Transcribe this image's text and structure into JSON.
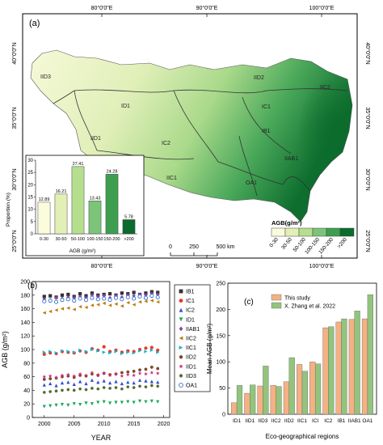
{
  "panel_a": {
    "label": "(a)",
    "top_ticks": [
      "80°0'0\"E",
      "90°0'0\"E",
      "100°0'0\"E"
    ],
    "bottom_ticks": [
      "80°0'0\"E",
      "90°0'0\"E",
      "100°0'0\"E"
    ],
    "left_ticks": [
      "40°0'0\"N",
      "35°0'0\"N",
      "30°0'0\"N",
      "25°0'0\"N"
    ],
    "right_ticks": [
      "40°0'0\"N",
      "35°0'0\"N",
      "30°0'0\"N",
      "25°0'0\"N"
    ],
    "regions": [
      "IID3",
      "IID2",
      "IIC2",
      "ID1",
      "IC1",
      "IID1",
      "IC2",
      "IB1",
      "IIAB1",
      "IIC1",
      "OA1"
    ],
    "scale_bar": {
      "labels": [
        "0",
        "250",
        "500 km"
      ]
    },
    "legend": {
      "title": "AGB(g/m²)",
      "classes": [
        "0-30",
        "30-50",
        "50-100",
        "100-150",
        "150-200",
        ">200"
      ],
      "colors": [
        "#fbfcdc",
        "#e2f0b6",
        "#b5df8f",
        "#7cc47a",
        "#3e9e4f",
        "#0b6b2c"
      ]
    }
  },
  "chart_data": [
    {
      "type": "bar",
      "panel": "inset",
      "categories": [
        "0-30",
        "30-50",
        "50-100",
        "100-150",
        "150-200",
        ">200"
      ],
      "values": [
        12.89,
        16.21,
        27.41,
        13.43,
        24.28,
        5.78
      ],
      "value_labels": [
        "12.89",
        "16.21",
        "27.41",
        "13.43",
        "24.28",
        "5.78"
      ],
      "ylabel": "Proportion (%)",
      "xlabel": "AGB (g/m²)",
      "ylim": [
        0,
        30
      ],
      "yticks": [
        "0",
        "5",
        "10",
        "15",
        "20",
        "25",
        "30"
      ],
      "colors": [
        "#fbfcdc",
        "#e2f0b6",
        "#b5df8f",
        "#7cc47a",
        "#3e9e4f",
        "#0b6b2c"
      ]
    },
    {
      "type": "scatter",
      "panel": "b",
      "label": "(b)",
      "xlabel": "YEAR",
      "ylabel": "AGB (g/m²)",
      "xlim": [
        1998,
        2021
      ],
      "ylim": [
        0,
        200
      ],
      "xticks": [
        "2000",
        "2005",
        "2010",
        "2015",
        "2020"
      ],
      "yticks": [
        "0",
        "20",
        "40",
        "60",
        "80",
        "100",
        "120",
        "140",
        "160",
        "180",
        "200"
      ],
      "x": [
        2000,
        2001,
        2002,
        2003,
        2004,
        2005,
        2006,
        2007,
        2008,
        2009,
        2010,
        2011,
        2012,
        2013,
        2014,
        2015,
        2016,
        2017,
        2018,
        2019
      ],
      "series": [
        {
          "name": "IB1",
          "color": "#333333",
          "marker": "square",
          "values": [
            178,
            179,
            177,
            180,
            181,
            178,
            182,
            179,
            183,
            180,
            181,
            182,
            180,
            183,
            182,
            184,
            181,
            183,
            185,
            184
          ]
        },
        {
          "name": "IC1",
          "color": "#e8392a",
          "marker": "circle",
          "values": [
            93,
            95,
            94,
            97,
            96,
            95,
            98,
            96,
            101,
            99,
            104,
            97,
            99,
            96,
            98,
            97,
            100,
            102,
            103,
            99
          ]
        },
        {
          "name": "IC2",
          "color": "#2c4bd6",
          "marker": "triangle-up",
          "values": [
            48,
            50,
            47,
            51,
            52,
            49,
            53,
            50,
            55,
            52,
            54,
            51,
            53,
            50,
            52,
            51,
            55,
            54,
            53,
            52
          ]
        },
        {
          "name": "ID1",
          "color": "#1aa85a",
          "marker": "triangle-down",
          "values": [
            16,
            17,
            18,
            19,
            18,
            20,
            19,
            21,
            20,
            22,
            23,
            21,
            22,
            22,
            23,
            22,
            24,
            23,
            24,
            23
          ]
        },
        {
          "name": "IIAB1",
          "color": "#8e44ad",
          "marker": "diamond",
          "values": [
            174,
            173,
            176,
            175,
            177,
            176,
            178,
            176,
            180,
            178,
            179,
            176,
            179,
            177,
            180,
            179,
            181,
            180,
            182,
            181
          ]
        },
        {
          "name": "IIC2",
          "color": "#c07a0a",
          "marker": "triangle-left",
          "values": [
            154,
            156,
            158,
            160,
            161,
            159,
            163,
            162,
            165,
            166,
            168,
            165,
            167,
            164,
            169,
            166,
            170,
            171,
            172,
            170
          ]
        },
        {
          "name": "IIC1",
          "color": "#1ab0c8",
          "marker": "triangle-right",
          "values": [
            96,
            97,
            95,
            98,
            97,
            96,
            99,
            97,
            100,
            98,
            96,
            95,
            97,
            94,
            96,
            95,
            98,
            97,
            99,
            96
          ]
        },
        {
          "name": "IID2",
          "color": "#7a4a2a",
          "marker": "hexagon",
          "values": [
            56,
            57,
            58,
            60,
            61,
            59,
            62,
            61,
            64,
            62,
            65,
            63,
            64,
            66,
            67,
            68,
            70,
            71,
            74,
            72
          ]
        },
        {
          "name": "IID1",
          "color": "#d12a7a",
          "marker": "star",
          "values": [
            60,
            61,
            59,
            62,
            63,
            61,
            64,
            62,
            66,
            63,
            65,
            62,
            64,
            61,
            63,
            62,
            65,
            64,
            66,
            65
          ]
        },
        {
          "name": "IID3",
          "color": "#556b2f",
          "marker": "pentagon",
          "values": [
            37,
            38,
            39,
            40,
            41,
            40,
            42,
            41,
            43,
            42,
            44,
            43,
            44,
            42,
            45,
            44,
            46,
            45,
            47,
            46
          ]
        },
        {
          "name": "OA1",
          "color": "#2e6fd1",
          "marker": "circle-open",
          "values": [
            171,
            172,
            170,
            173,
            174,
            172,
            175,
            173,
            176,
            174,
            175,
            173,
            176,
            174,
            177,
            175,
            178,
            176,
            179,
            177
          ]
        }
      ]
    },
    {
      "type": "bar",
      "panel": "c",
      "label": "(c)",
      "xlabel": "Eco-geographical regions",
      "ylabel": "Mean AGB (g/m²)",
      "ylim": [
        0,
        250
      ],
      "yticks": [
        "0",
        "50",
        "100",
        "150",
        "200",
        "250"
      ],
      "categories": [
        "ID1",
        "IID1",
        "IID3",
        "IIC2",
        "IID2",
        "IIC1",
        "ICI",
        "IC2",
        "IB1",
        "IIAB1",
        "OA1"
      ],
      "series": [
        {
          "name": "This study",
          "color": "#f4b183",
          "values": [
            22,
            40,
            54,
            55,
            62,
            95,
            100,
            165,
            176,
            181,
            182
          ]
        },
        {
          "name": "X. Zhang et al. 2022",
          "color": "#93c47d",
          "values": [
            55,
            56,
            92,
            53,
            108,
            82,
            96,
            167,
            182,
            197,
            228
          ]
        }
      ]
    }
  ]
}
